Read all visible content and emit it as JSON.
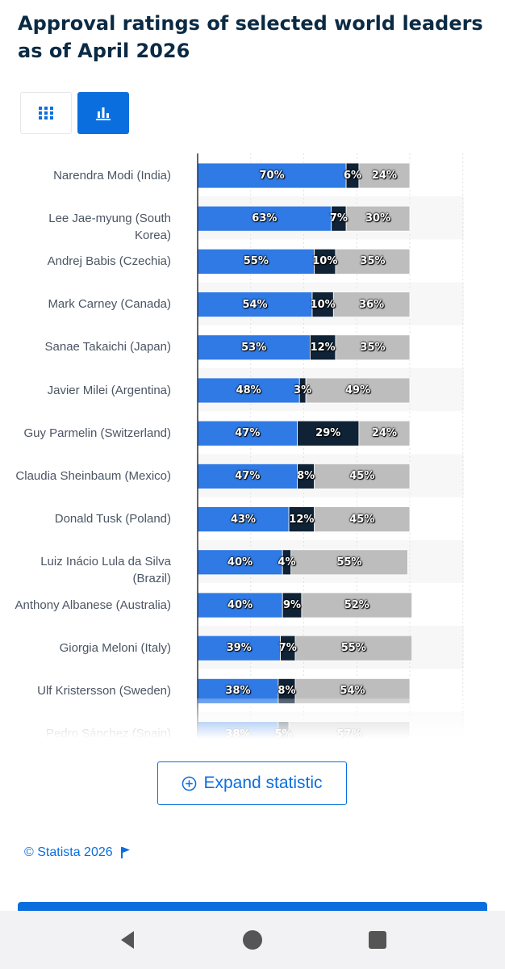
{
  "page": {
    "title": "Approval ratings of selected world leaders as of April 2026",
    "view_toggle": {
      "table_icon": "grid-icon",
      "chart_icon": "bar-chart-icon",
      "selected": "chart"
    },
    "expand_label": "Expand statistic",
    "expand_icon": "plus-circle-icon",
    "credit": "© Statista 2026",
    "credit_icon": "flag-icon",
    "nav": {
      "back_icon": "back-triangle-icon",
      "home_icon": "home-circle-icon",
      "recents_icon": "recents-square-icon"
    }
  },
  "colors": {
    "approve": "#2f7ae5",
    "neutral": "#0f2236",
    "disapprove": "#bdbdbd",
    "accent": "#0b6ede"
  },
  "chart_data": {
    "type": "bar",
    "orientation": "horizontal",
    "stacked": true,
    "title": "Approval ratings of selected world leaders as of April 2026",
    "xlim": [
      0,
      100
    ],
    "value_unit": "%",
    "categories": [
      "Narendra Modi (India)",
      "Lee Jae-myung (South Korea)",
      "Andrej Babis (Czechia)",
      "Mark Carney (Canada)",
      "Sanae Takaichi (Japan)",
      "Javier Milei (Argentina)",
      "Guy Parmelin (Switzerland)",
      "Claudia Sheinbaum (Mexico)",
      "Donald Tusk (Poland)",
      "Luiz Inácio Lula da Silva (Brazil)",
      "Anthony Albanese (Australia)",
      "Giorgia Meloni (Italy)",
      "Ulf Kristersson (Sweden)",
      "Pedro Sánchez (Spain)"
    ],
    "series": [
      {
        "values": [
          70,
          63,
          55,
          54,
          53,
          48,
          47,
          47,
          43,
          40,
          40,
          39,
          38,
          38
        ]
      },
      {
        "values": [
          6,
          7,
          10,
          10,
          12,
          3,
          29,
          8,
          12,
          4,
          9,
          7,
          8,
          5
        ]
      },
      {
        "values": [
          24,
          30,
          35,
          36,
          35,
          49,
          24,
          45,
          45,
          55,
          52,
          55,
          54,
          57
        ]
      }
    ]
  }
}
